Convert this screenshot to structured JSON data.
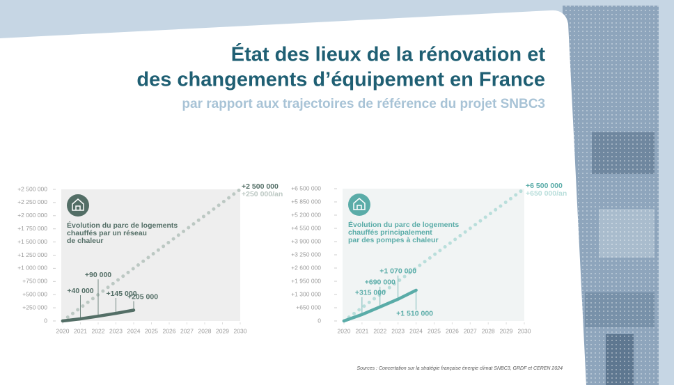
{
  "header": {
    "title": [
      "État des lieux de la rénovation et",
      "des changements d’équipement en France"
    ],
    "subtitle": "par rapport aux trajectoires de référence du projet SNBC3",
    "sources": "Sources : Concertation sur la stratégie française énergie climat SNBC3, GRDF et CEREN 2024"
  },
  "chart_data": [
    {
      "type": "line",
      "title": [
        "Évolution du parc de logements",
        "chauffés par un réseau",
        "de chaleur"
      ],
      "x": [
        2020,
        2021,
        2022,
        2023,
        2024,
        2025,
        2026,
        2027,
        2028,
        2029,
        2030
      ],
      "xlim": [
        2020,
        2030
      ],
      "xticks": [
        2020,
        2021,
        2022,
        2023,
        2024,
        2025,
        2026,
        2027,
        2028,
        2029,
        2030
      ],
      "ylim": [
        0,
        2500000
      ],
      "yticks": [
        0,
        {
          "value": 250000,
          "label": "+250 000"
        },
        {
          "value": 500000,
          "label": "+500 000"
        },
        {
          "value": 750000,
          "label": "+750 000"
        },
        {
          "value": 1000000,
          "label": "+1 000 000"
        },
        {
          "value": 1250000,
          "label": "+1 250 000"
        },
        {
          "value": 1500000,
          "label": "+1 500 000"
        },
        {
          "value": 1750000,
          "label": "+1 750 000"
        },
        {
          "value": 2000000,
          "label": "+2 000 000"
        },
        {
          "value": 2250000,
          "label": "+2 250 000"
        },
        {
          "value": 2500000,
          "label": "+2 500 000"
        }
      ],
      "series": [
        {
          "color": "#536e66",
          "style": "solid",
          "values": [
            0,
            40000,
            90000,
            145000,
            205000,
            null,
            null,
            null,
            null,
            null,
            null
          ],
          "value_labels": [
            null,
            "+40 000",
            "+90 000",
            "+145 000",
            "+205 000",
            null,
            null,
            null,
            null,
            null,
            null
          ]
        },
        {
          "color": "#bcc8c3",
          "style": "dotted",
          "values": [
            0,
            250000,
            500000,
            750000,
            1000000,
            1250000,
            1500000,
            1750000,
            2000000,
            2250000,
            2500000
          ],
          "end_label": "+2 500 000",
          "rate_label": "+250 000/an",
          "end_color": "#536e66"
        }
      ]
    },
    {
      "type": "line",
      "title": [
        "Évolution du parc de logements",
        "chauffés principalement",
        "par des pompes à chaleur"
      ],
      "x": [
        2020,
        2021,
        2022,
        2023,
        2024,
        2025,
        2026,
        2027,
        2028,
        2029,
        2030
      ],
      "xlim": [
        2020,
        2030
      ],
      "xticks": [
        2020,
        2021,
        2022,
        2023,
        2024,
        2025,
        2026,
        2027,
        2028,
        2029,
        2030
      ],
      "ylim": [
        0,
        6500000
      ],
      "yticks": [
        0,
        {
          "value": 650000,
          "label": "+650 000"
        },
        {
          "value": 1300000,
          "label": "+1 300 000"
        },
        {
          "value": 1950000,
          "label": "+1 950 000"
        },
        {
          "value": 2600000,
          "label": "+2 600 000"
        },
        {
          "value": 3250000,
          "label": "+3 250 000"
        },
        {
          "value": 3900000,
          "label": "+3 900 000"
        },
        {
          "value": 4550000,
          "label": "+4 550 000"
        },
        {
          "value": 5200000,
          "label": "+5 200 000"
        },
        {
          "value": 5850000,
          "label": "+5 850 000"
        },
        {
          "value": 6500000,
          "label": "+6 500 000"
        }
      ],
      "series": [
        {
          "color": "#5aaca8",
          "style": "solid",
          "values": [
            0,
            315000,
            690000,
            1070000,
            1510000,
            null,
            null,
            null,
            null,
            null,
            null
          ],
          "value_labels": [
            null,
            "+315 000",
            "+690 000",
            "+1 070 000",
            "+1 510 000",
            null,
            null,
            null,
            null,
            null,
            null
          ]
        },
        {
          "color": "#b9dedb",
          "style": "dotted",
          "values": [
            0,
            650000,
            1300000,
            1950000,
            2600000,
            3250000,
            3900000,
            4550000,
            5200000,
            5850000,
            6500000
          ],
          "end_label": "+6 500 000",
          "rate_label": "+650 000/an",
          "end_color": "#5aaca8"
        }
      ]
    }
  ]
}
